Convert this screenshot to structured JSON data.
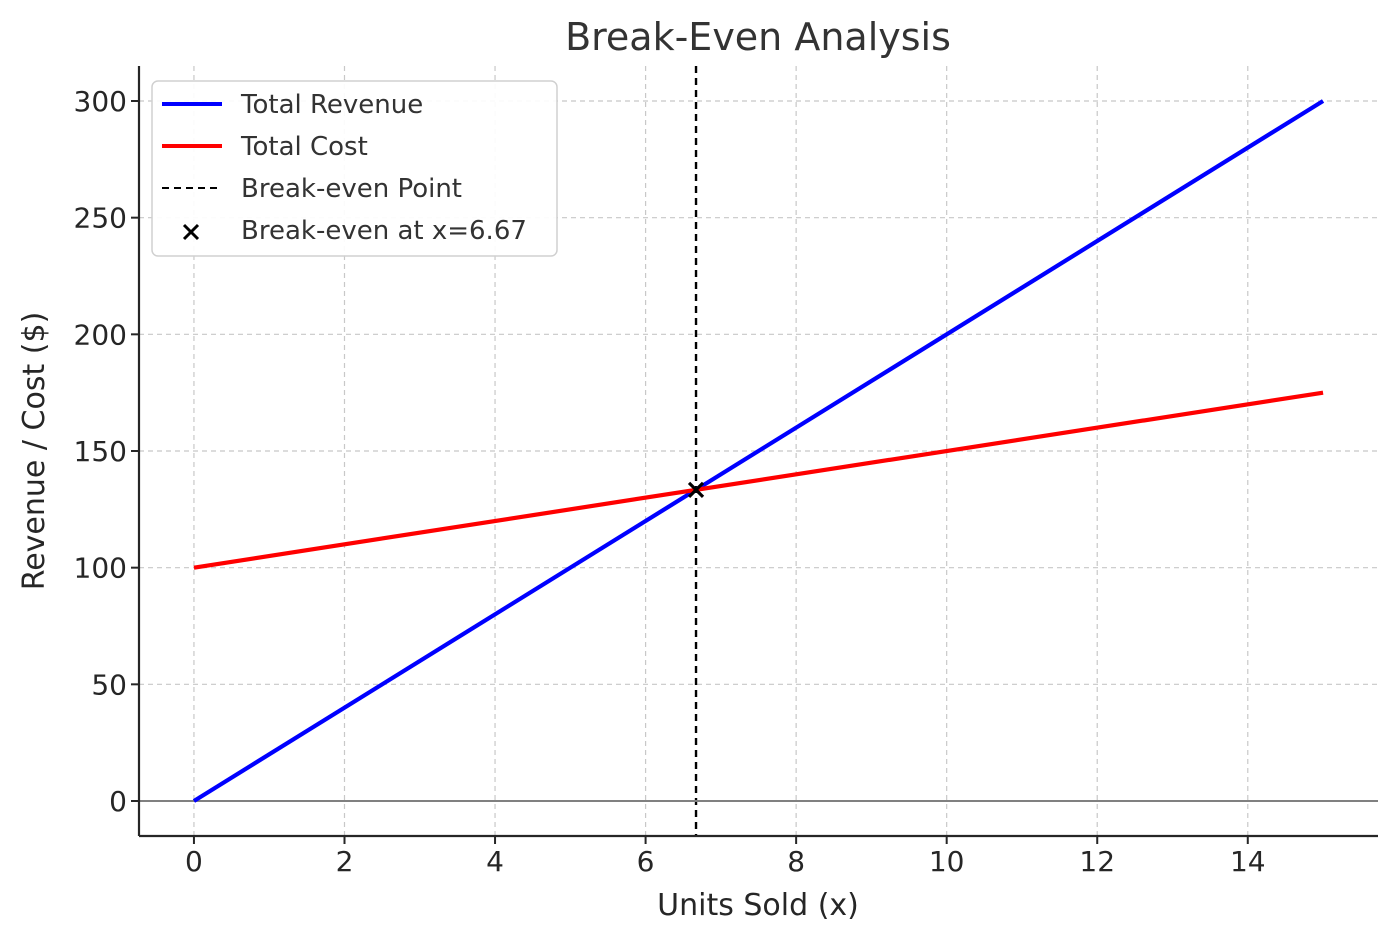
{
  "chart_data": {
    "type": "line",
    "title": "Break-Even Analysis",
    "xlabel": "Units Sold (x)",
    "ylabel": "Revenue / Cost ($)",
    "xlim": [
      -0.73,
      15.73
    ],
    "ylim": [
      -15,
      315
    ],
    "x_ticks": [
      0,
      2,
      4,
      6,
      8,
      10,
      12,
      14
    ],
    "y_ticks": [
      0,
      50,
      100,
      150,
      200,
      250,
      300
    ],
    "x_tick_labels": [
      "0",
      "2",
      "4",
      "6",
      "8",
      "10",
      "12",
      "14"
    ],
    "y_tick_labels": [
      "0",
      "50",
      "100",
      "150",
      "200",
      "250",
      "300"
    ],
    "grid": true,
    "legend_position": "top-left",
    "series": [
      {
        "name": "Total Revenue",
        "color": "#0000ff",
        "x": [
          0,
          15
        ],
        "y": [
          0,
          300
        ]
      },
      {
        "name": "Total Cost",
        "color": "#ff0000",
        "x": [
          0,
          15
        ],
        "y": [
          100,
          175
        ]
      }
    ],
    "reference_lines": [
      {
        "name": "Break-even Point",
        "orientation": "vertical",
        "x": 6.67,
        "color": "#000000",
        "style": "dashed"
      },
      {
        "orientation": "horizontal",
        "y": 0,
        "color": "#808080",
        "style": "solid"
      }
    ],
    "markers": [
      {
        "name": "Break-even at x=6.67",
        "x": 6.67,
        "y": 133.33,
        "symbol": "x",
        "color": "#000000"
      }
    ],
    "legend": [
      "Total Revenue",
      "Total Cost",
      "Break-even Point",
      "Break-even at x=6.67"
    ]
  }
}
